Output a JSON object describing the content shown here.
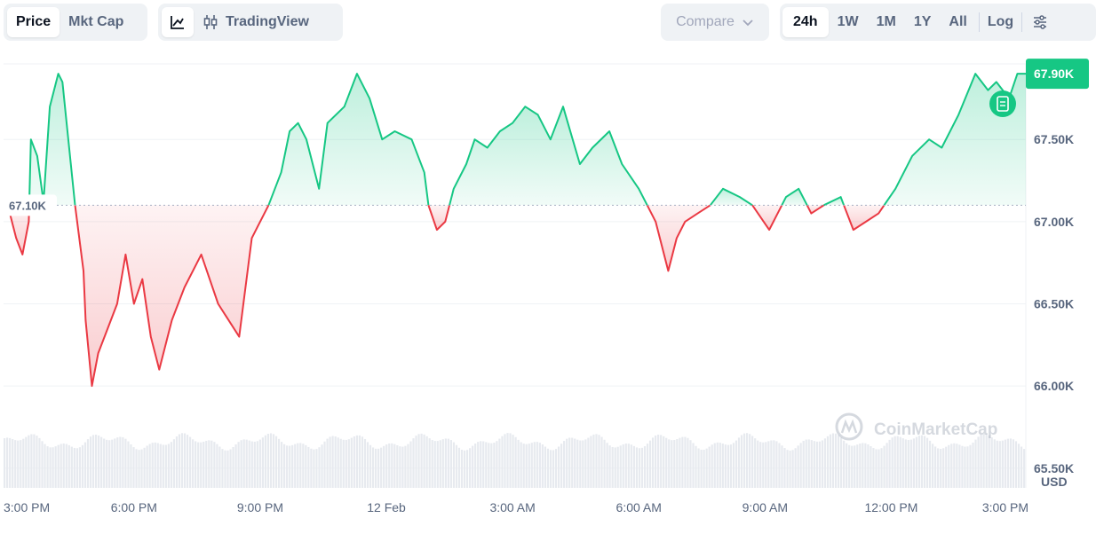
{
  "toolbar": {
    "metric_tabs": [
      {
        "label": "Price",
        "active": true
      },
      {
        "label": "Mkt Cap",
        "active": false
      }
    ],
    "chart_tools": {
      "line_icon": "line-chart-icon",
      "tradingview_icon": "candlestick-icon",
      "tradingview_label": "TradingView"
    },
    "compare": {
      "label": "Compare",
      "icon": "chevron-down-icon"
    },
    "ranges": [
      {
        "label": "24h",
        "active": true
      },
      {
        "label": "1W",
        "active": false
      },
      {
        "label": "1M",
        "active": false
      },
      {
        "label": "1Y",
        "active": false
      },
      {
        "label": "All",
        "active": false
      }
    ],
    "log_label": "Log",
    "settings_icon": "sliders-icon"
  },
  "chart_data": {
    "type": "area",
    "baseline": 67100,
    "baseline_label": "67.10K",
    "current_label": "67.90K",
    "y_unit": "USD",
    "ylim": [
      65380,
      67960
    ],
    "y_ticks": [
      {
        "value": 65500,
        "label": "65.50K"
      },
      {
        "value": 66000,
        "label": "66.00K"
      },
      {
        "value": 66500,
        "label": "66.50K"
      },
      {
        "value": 67000,
        "label": "67.00K"
      },
      {
        "value": 67500,
        "label": "67.50K"
      }
    ],
    "x_ticks": [
      "3:00 PM",
      "6:00 PM",
      "9:00 PM",
      "12 Feb",
      "3:00 AM",
      "6:00 AM",
      "9:00 AM",
      "12:00 PM",
      "3:00 PM"
    ],
    "x_range_hours": [
      -0.1,
      24.2
    ],
    "x_tick_hours": [
      0,
      3,
      6,
      9,
      12,
      15,
      18,
      21,
      24
    ],
    "series": [
      {
        "x": [
          0,
          0.2,
          0.35,
          0.5,
          0.55,
          0.7,
          0.85,
          1.0,
          1.2,
          1.3,
          1.4,
          1.6,
          1.8,
          1.85,
          2.0,
          2.15,
          2.3,
          2.6,
          2.8,
          3.0,
          3.2,
          3.4,
          3.6,
          3.9,
          4.2,
          4.6,
          5.0,
          5.5,
          5.8,
          6.0,
          6.2,
          6.5,
          6.7,
          6.9,
          7.1,
          7.4,
          7.6,
          8.0,
          8.3,
          8.6,
          8.9,
          9.2,
          9.6,
          9.9,
          10.0,
          10.2,
          10.4,
          10.6,
          10.9,
          11.1,
          11.4,
          11.7,
          12.0,
          12.3,
          12.6,
          12.9,
          13.2,
          13.6,
          13.9,
          14.3,
          14.6,
          15.0,
          15.4,
          15.7,
          15.9,
          16.1,
          16.4,
          16.7,
          17.0,
          17.4,
          17.7,
          18.1,
          18.5,
          18.8,
          19.1,
          19.4,
          19.8,
          20.1,
          20.4,
          20.7,
          21.1,
          21.5,
          21.9,
          22.2,
          22.6,
          23.0,
          23.3,
          23.5,
          23.8,
          24.0,
          24.2
        ],
        "y": [
          67100,
          66900,
          66800,
          67000,
          67500,
          67400,
          67120,
          67700,
          67900,
          67850,
          67600,
          67100,
          66700,
          66400,
          66000,
          66200,
          66300,
          66500,
          66800,
          66500,
          66650,
          66300,
          66100,
          66400,
          66600,
          66800,
          66500,
          66300,
          66900,
          67000,
          67100,
          67300,
          67550,
          67600,
          67500,
          67200,
          67600,
          67700,
          67900,
          67750,
          67500,
          67550,
          67500,
          67300,
          67100,
          66950,
          67000,
          67200,
          67350,
          67500,
          67450,
          67550,
          67600,
          67700,
          67650,
          67500,
          67700,
          67350,
          67450,
          67550,
          67350,
          67200,
          67000,
          66700,
          66900,
          67000,
          67050,
          67100,
          67200,
          67150,
          67100,
          66950,
          67150,
          67200,
          67050,
          67100,
          67150,
          66950,
          67000,
          67050,
          67200,
          67400,
          67500,
          67450,
          67650,
          67900,
          67800,
          67850,
          67750,
          67900,
          67900
        ]
      }
    ]
  },
  "watermark": {
    "brand": "CoinMarketCap"
  }
}
